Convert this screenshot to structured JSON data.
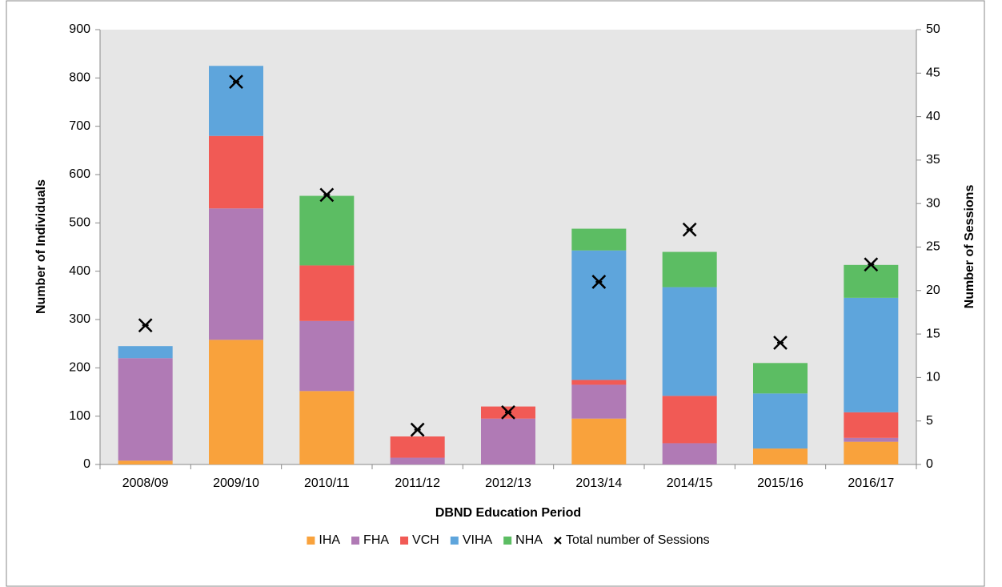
{
  "chart_data": {
    "type": "bar",
    "stacked": true,
    "x_label": "DBND Education Period",
    "y_label": "Number of Individuals",
    "y2_label": "Number of Sessions",
    "categories": [
      "2008/09",
      "2009/10",
      "2010/11",
      "2011/12",
      "2012/13",
      "2013/14",
      "2014/15",
      "2015/16",
      "2016/17"
    ],
    "series": [
      {
        "name": "IHA",
        "color": "#f9a23c",
        "values": [
          8,
          258,
          152,
          0,
          0,
          95,
          0,
          33,
          47
        ]
      },
      {
        "name": "FHA",
        "color": "#b07ab5",
        "values": [
          212,
          272,
          145,
          14,
          95,
          70,
          44,
          0,
          8
        ]
      },
      {
        "name": "VCH",
        "color": "#f15a55",
        "values": [
          0,
          150,
          115,
          44,
          25,
          10,
          98,
          0,
          53
        ]
      },
      {
        "name": "VIHA",
        "color": "#5ea5dc",
        "values": [
          25,
          145,
          0,
          0,
          0,
          268,
          225,
          114,
          237
        ]
      },
      {
        "name": "NHA",
        "color": "#5cbd63",
        "values": [
          0,
          0,
          144,
          0,
          0,
          45,
          73,
          63,
          68
        ]
      },
      {
        "name": "Total number of Sessions",
        "type": "scatter",
        "axis": "y2",
        "color": "#000000",
        "values": [
          16,
          44,
          31,
          4,
          6,
          21,
          27,
          14,
          23
        ]
      }
    ],
    "ylim": [
      0,
      900
    ],
    "yticks": [
      0,
      100,
      200,
      300,
      400,
      500,
      600,
      700,
      800,
      900
    ],
    "y2lim": [
      0,
      50
    ],
    "y2ticks": [
      0,
      5,
      10,
      15,
      20,
      25,
      30,
      35,
      40,
      45,
      50
    ],
    "legend": "bottom"
  }
}
